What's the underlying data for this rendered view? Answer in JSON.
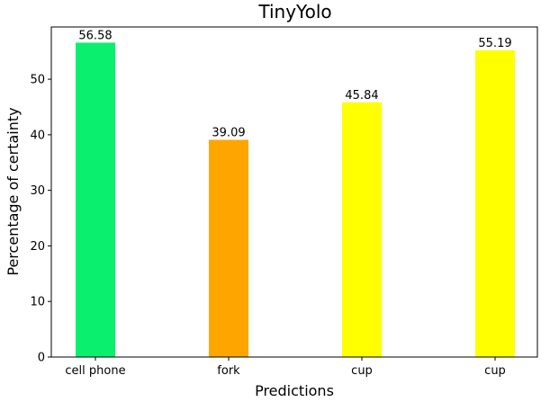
{
  "chart_data": {
    "type": "bar",
    "title": "TinyYolo",
    "xlabel": "Predictions",
    "ylabel": "Percentage of certainty",
    "categories": [
      "cell phone",
      "fork",
      "cup",
      "cup"
    ],
    "values": [
      56.58,
      39.09,
      45.84,
      55.19
    ],
    "data_labels": [
      "56.58",
      "39.09",
      "45.84",
      "55.19"
    ],
    "bar_colors": [
      "#0af06e",
      "#ffa500",
      "#ffff00",
      "#ffff00"
    ],
    "ylim": [
      0,
      59.4
    ],
    "yticks": [
      0,
      10,
      20,
      30,
      40,
      50
    ],
    "grid": false,
    "legend": "none"
  }
}
